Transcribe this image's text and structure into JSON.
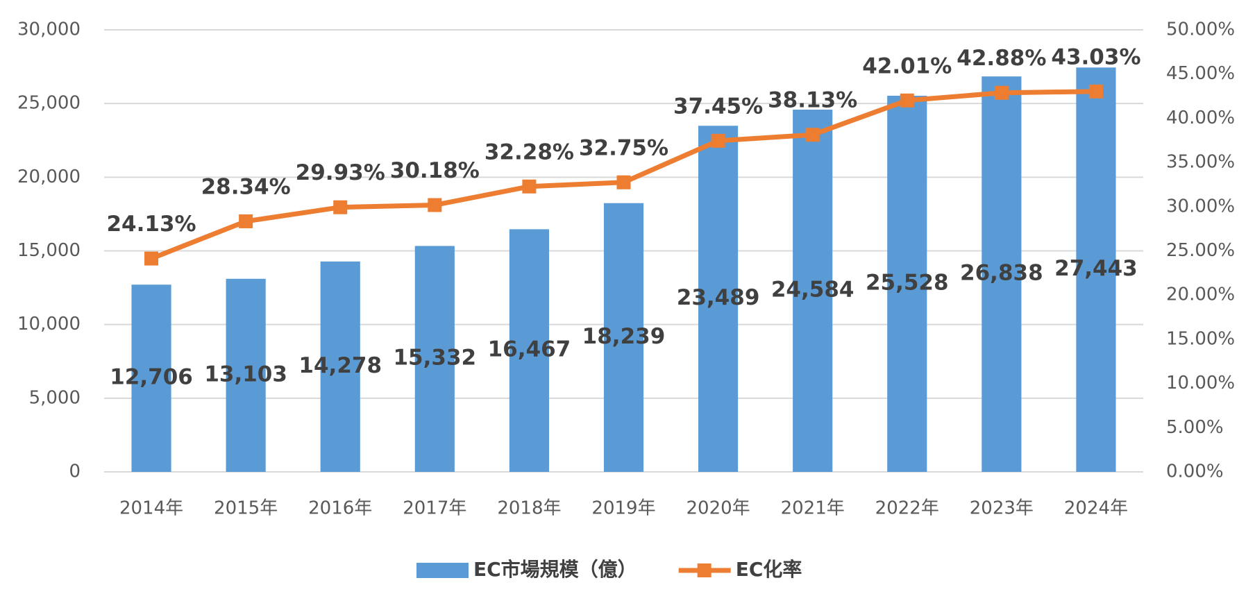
{
  "chart_data": {
    "type": "combo",
    "categories": [
      "2014年",
      "2015年",
      "2016年",
      "2017年",
      "2018年",
      "2019年",
      "2020年",
      "2021年",
      "2022年",
      "2023年",
      "2024年"
    ],
    "series": [
      {
        "name": "EC市場規模（億）",
        "type": "bar",
        "color": "#5b9bd5",
        "values": [
          12706,
          13103,
          14278,
          15332,
          16467,
          18239,
          23489,
          24584,
          25528,
          26838,
          27443
        ],
        "value_labels": [
          "12,706",
          "13,103",
          "14,278",
          "15,332",
          "16,467",
          "18,239",
          "23,489",
          "24,584",
          "25,528",
          "26,838",
          "27,443"
        ]
      },
      {
        "name": "EC化率",
        "type": "line",
        "axis": "y2",
        "color": "#ed7d31",
        "values": [
          24.13,
          28.34,
          29.93,
          30.18,
          32.28,
          32.75,
          37.45,
          38.13,
          42.01,
          42.88,
          43.03
        ],
        "value_labels": [
          "24.13%",
          "28.34%",
          "29.93%",
          "30.18%",
          "32.28%",
          "32.75%",
          "37.45%",
          "38.13%",
          "42.01%",
          "42.88%",
          "43.03%"
        ]
      }
    ],
    "ylim": [
      0,
      30000
    ],
    "yticks": [
      0,
      {
        "value": 5000,
        "label": "5,000"
      },
      {
        "value": 10000,
        "label": "10,000"
      },
      {
        "value": 15000,
        "label": "15,000"
      },
      {
        "value": 20000,
        "label": "20,000"
      },
      {
        "value": 25000,
        "label": "25,000"
      },
      {
        "value": 30000,
        "label": "30,000"
      }
    ],
    "y2lim": [
      0,
      50
    ],
    "y2ticks": [
      {
        "value": 0,
        "label": "0.00%"
      },
      {
        "value": 5,
        "label": "5.00%"
      },
      {
        "value": 10,
        "label": "10.00%"
      },
      {
        "value": 15,
        "label": "15.00%"
      },
      {
        "value": 20,
        "label": "20.00%"
      },
      {
        "value": 25,
        "label": "25.00%"
      },
      {
        "value": 30,
        "label": "30.00%"
      },
      {
        "value": 35,
        "label": "35.00%"
      },
      {
        "value": 40,
        "label": "40.00%"
      },
      {
        "value": 45,
        "label": "45.00%"
      },
      {
        "value": 50,
        "label": "50.00%"
      }
    ],
    "grid": true,
    "legend": "bottom"
  }
}
